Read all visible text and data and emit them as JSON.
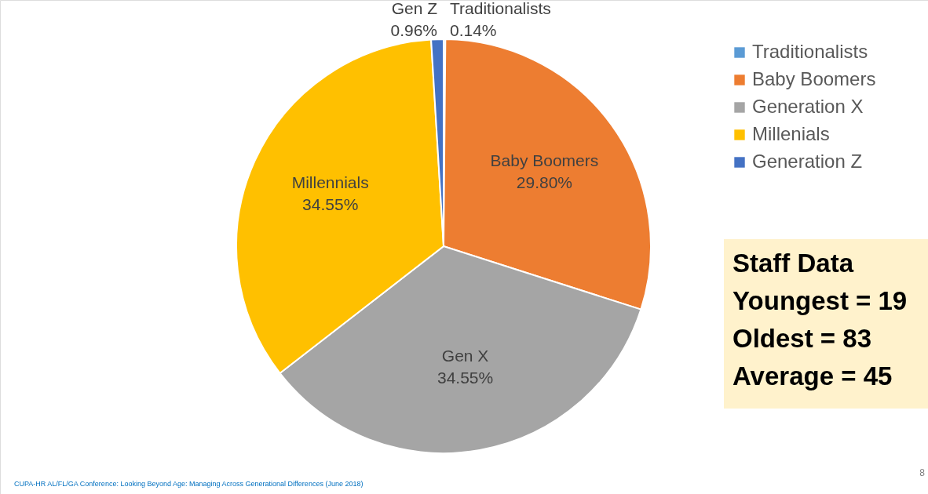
{
  "chart_data": [
    {
      "type": "pie",
      "categories": [
        "Traditionalists",
        "Baby Boomers",
        "Generation X",
        "Millenials",
        "Generation Z"
      ],
      "values": [
        0.14,
        29.8,
        34.55,
        34.55,
        0.96
      ],
      "colors": [
        "#5b9bd5",
        "#ed7d31",
        "#a5a5a5",
        "#ffc000",
        "#4472c4"
      ],
      "value_labels": [
        "0.14%",
        "29.80%",
        "34.55%",
        "34.55%",
        "0.96%"
      ],
      "legend": "top right",
      "annotations": [
        {
          "text": "Traditionalists",
          "x": "Traditionalists"
        },
        {
          "text": "Baby Boomers",
          "x": "Baby Boomers"
        },
        {
          "text": "Gen X",
          "x": "Generation X"
        },
        {
          "text": "Millennials",
          "x": "Millenials"
        },
        {
          "text": "Gen Z",
          "x": "Generation Z"
        },
        "CUPA-HR AL/FL/GA Conference: Looking Beyond Age: Managing Across Generational Differences (June 2018)",
        "8"
      ]
    },
    {
      "type": "other",
      "annotations": [
        "Staff Data",
        "Youngest = 19",
        "Oldest = 83",
        "Average = 45"
      ]
    }
  ]
}
